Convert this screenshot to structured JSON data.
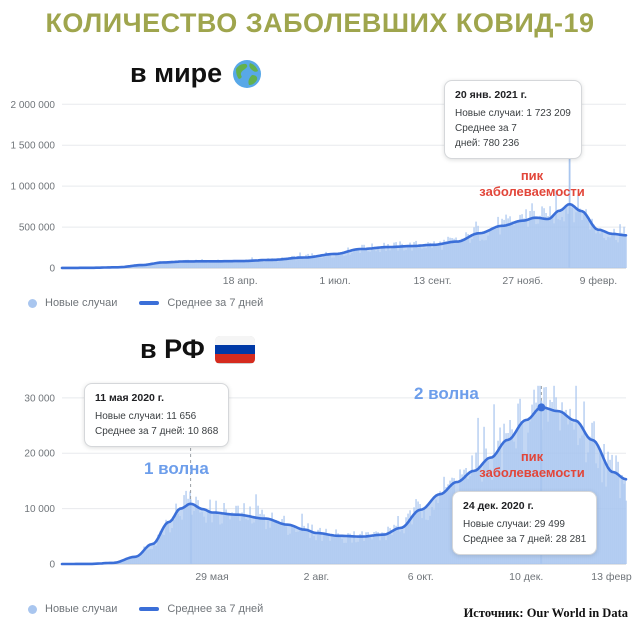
{
  "page": {
    "title": "КОЛИЧЕСТВО ЗАБОЛЕВШИХ КОВИД-19",
    "source": "Источник: Our World in Data",
    "legend": {
      "new_cases": "Новые случаи",
      "avg": "Среднее за 7 дней"
    },
    "colors": {
      "title": "#9fa54d",
      "bar": "#a9c6ef",
      "line": "#3b6fd8",
      "peak_red": "#e2463a",
      "wave_blue": "#6d9eeb",
      "axis_text": "#70757a"
    }
  },
  "world": {
    "subtitle": "в мире",
    "icon": "globe-icon",
    "peak_label": "пик заболеваемости",
    "tooltip": {
      "date": "20 янв. 2021 г.",
      "lines": [
        "Новые случаи: 1 723 209",
        "Среднее за 7",
        "дней: 780 236"
      ]
    }
  },
  "rf": {
    "subtitle": "в РФ",
    "icon": "russia-flag-icon",
    "wave1_label": "1 волна",
    "wave2_label": "2 волна",
    "peak_label": "пик заболеваемости",
    "tooltip1": {
      "date": "11 мая 2020 г.",
      "lines": [
        "Новые случаи: 11 656",
        "Среднее за 7 дней: 10 868"
      ]
    },
    "tooltip2": {
      "date": "24 дек. 2020 г.",
      "lines": [
        "Новые случаи: 29 499",
        "Среднее за 7 дней: 28 281"
      ]
    }
  },
  "chart_data": [
    {
      "id": "world",
      "type": "area",
      "title": "в мире",
      "xlabel": "",
      "ylabel": "",
      "grid": true,
      "legend": [
        "Новые случаи",
        "Среднее за 7 дней"
      ],
      "legend_position": "bottom",
      "ylim": [
        0,
        2150000
      ],
      "ytick_values": [
        0,
        500000,
        1000000,
        1500000,
        2000000
      ],
      "ytick_labels": [
        "0",
        "500 000",
        "1 000 000",
        "1 500 000",
        "2 000 000"
      ],
      "xticks": [
        {
          "pos": 0.316,
          "label": "18 апр."
        },
        {
          "pos": 0.484,
          "label": "1 июл."
        },
        {
          "pos": 0.657,
          "label": "13 сент."
        },
        {
          "pos": 0.817,
          "label": "27 нояб."
        },
        {
          "pos": 0.951,
          "label": "9 февр."
        }
      ],
      "avg_series": {
        "name": "Среднее за 7 дней",
        "points": [
          [
            0,
            800
          ],
          [
            0.05,
            2500
          ],
          [
            0.1,
            9000
          ],
          [
            0.14,
            35000
          ],
          [
            0.18,
            68000
          ],
          [
            0.22,
            81000
          ],
          [
            0.27,
            82000
          ],
          [
            0.316,
            84000
          ],
          [
            0.37,
            99000
          ],
          [
            0.43,
            128000
          ],
          [
            0.484,
            172000
          ],
          [
            0.53,
            232000
          ],
          [
            0.58,
            256000
          ],
          [
            0.62,
            268000
          ],
          [
            0.657,
            283000
          ],
          [
            0.7,
            322000
          ],
          [
            0.74,
            425000
          ],
          [
            0.78,
            515000
          ],
          [
            0.817,
            578000
          ],
          [
            0.84,
            615000
          ],
          [
            0.862,
            598000
          ],
          [
            0.882,
            700000
          ],
          [
            0.9,
            780000
          ],
          [
            0.92,
            698000
          ],
          [
            0.951,
            468000
          ],
          [
            0.975,
            418000
          ],
          [
            1,
            400000
          ]
        ]
      },
      "bars_series": {
        "name": "Новые случаи",
        "style": "daily bars scattered around the 7-day average"
      },
      "markers": [
        {
          "x": 0.9,
          "date": "20 янв. 2021 г.",
          "new_cases": 1723209,
          "avg": 780236,
          "line_top": 76,
          "dot": false
        }
      ],
      "annotations": [
        {
          "text": "пик заболеваемости",
          "color": "#e2463a"
        }
      ],
      "colors": {
        "bar": "#a9c6ef",
        "line": "#3b6fd8"
      }
    },
    {
      "id": "rf",
      "type": "area",
      "title": "в РФ",
      "xlabel": "",
      "ylabel": "",
      "grid": true,
      "legend": [
        "Новые случаи",
        "Среднее за 7 дней"
      ],
      "legend_position": "bottom",
      "ylim": [
        0,
        32500
      ],
      "ytick_values": [
        0,
        10000,
        20000,
        30000
      ],
      "ytick_labels": [
        "0",
        "10 000",
        "20 000",
        "30 000"
      ],
      "xticks": [
        {
          "pos": 0.266,
          "label": "29 мая"
        },
        {
          "pos": 0.451,
          "label": "2 авг."
        },
        {
          "pos": 0.636,
          "label": "6 окт."
        },
        {
          "pos": 0.823,
          "label": "10 дек."
        },
        {
          "pos": 0.977,
          "label": "13 февр."
        }
      ],
      "avg_series": {
        "name": "Среднее за 7 дней",
        "points": [
          [
            0,
            0
          ],
          [
            0.05,
            20
          ],
          [
            0.09,
            200
          ],
          [
            0.13,
            1300
          ],
          [
            0.16,
            3600
          ],
          [
            0.19,
            7600
          ],
          [
            0.21,
            10000
          ],
          [
            0.228,
            10868
          ],
          [
            0.25,
            9900
          ],
          [
            0.266,
            9300
          ],
          [
            0.31,
            8900
          ],
          [
            0.36,
            8200
          ],
          [
            0.4,
            7100
          ],
          [
            0.43,
            6200
          ],
          [
            0.451,
            5600
          ],
          [
            0.49,
            5100
          ],
          [
            0.53,
            4950
          ],
          [
            0.57,
            5300
          ],
          [
            0.6,
            6500
          ],
          [
            0.636,
            9800
          ],
          [
            0.67,
            12600
          ],
          [
            0.7,
            14800
          ],
          [
            0.73,
            16800
          ],
          [
            0.76,
            19200
          ],
          [
            0.79,
            22400
          ],
          [
            0.823,
            26000
          ],
          [
            0.85,
            28281
          ],
          [
            0.88,
            27600
          ],
          [
            0.91,
            25900
          ],
          [
            0.94,
            22400
          ],
          [
            0.977,
            16600
          ],
          [
            1,
            15300
          ]
        ]
      },
      "bars_series": {
        "name": "Новые случаи",
        "style": "daily bars scattered around the 7-day average"
      },
      "markers": [
        {
          "x": 0.228,
          "date": "11 мая 2020 г.",
          "new_cases": 11656,
          "avg": 10868,
          "line_top": 64,
          "dot": false
        },
        {
          "x": 0.85,
          "date": "24 дек. 2020 г.",
          "new_cases": 29499,
          "avg": 28281,
          "line_top": 8,
          "dot": true
        }
      ],
      "annotations": [
        {
          "text": "1 волна",
          "color": "#6d9eeb"
        },
        {
          "text": "2 волна",
          "color": "#6d9eeb"
        },
        {
          "text": "пик заболеваемости",
          "color": "#e2463a"
        }
      ],
      "colors": {
        "bar": "#a9c6ef",
        "line": "#3b6fd8"
      }
    }
  ]
}
